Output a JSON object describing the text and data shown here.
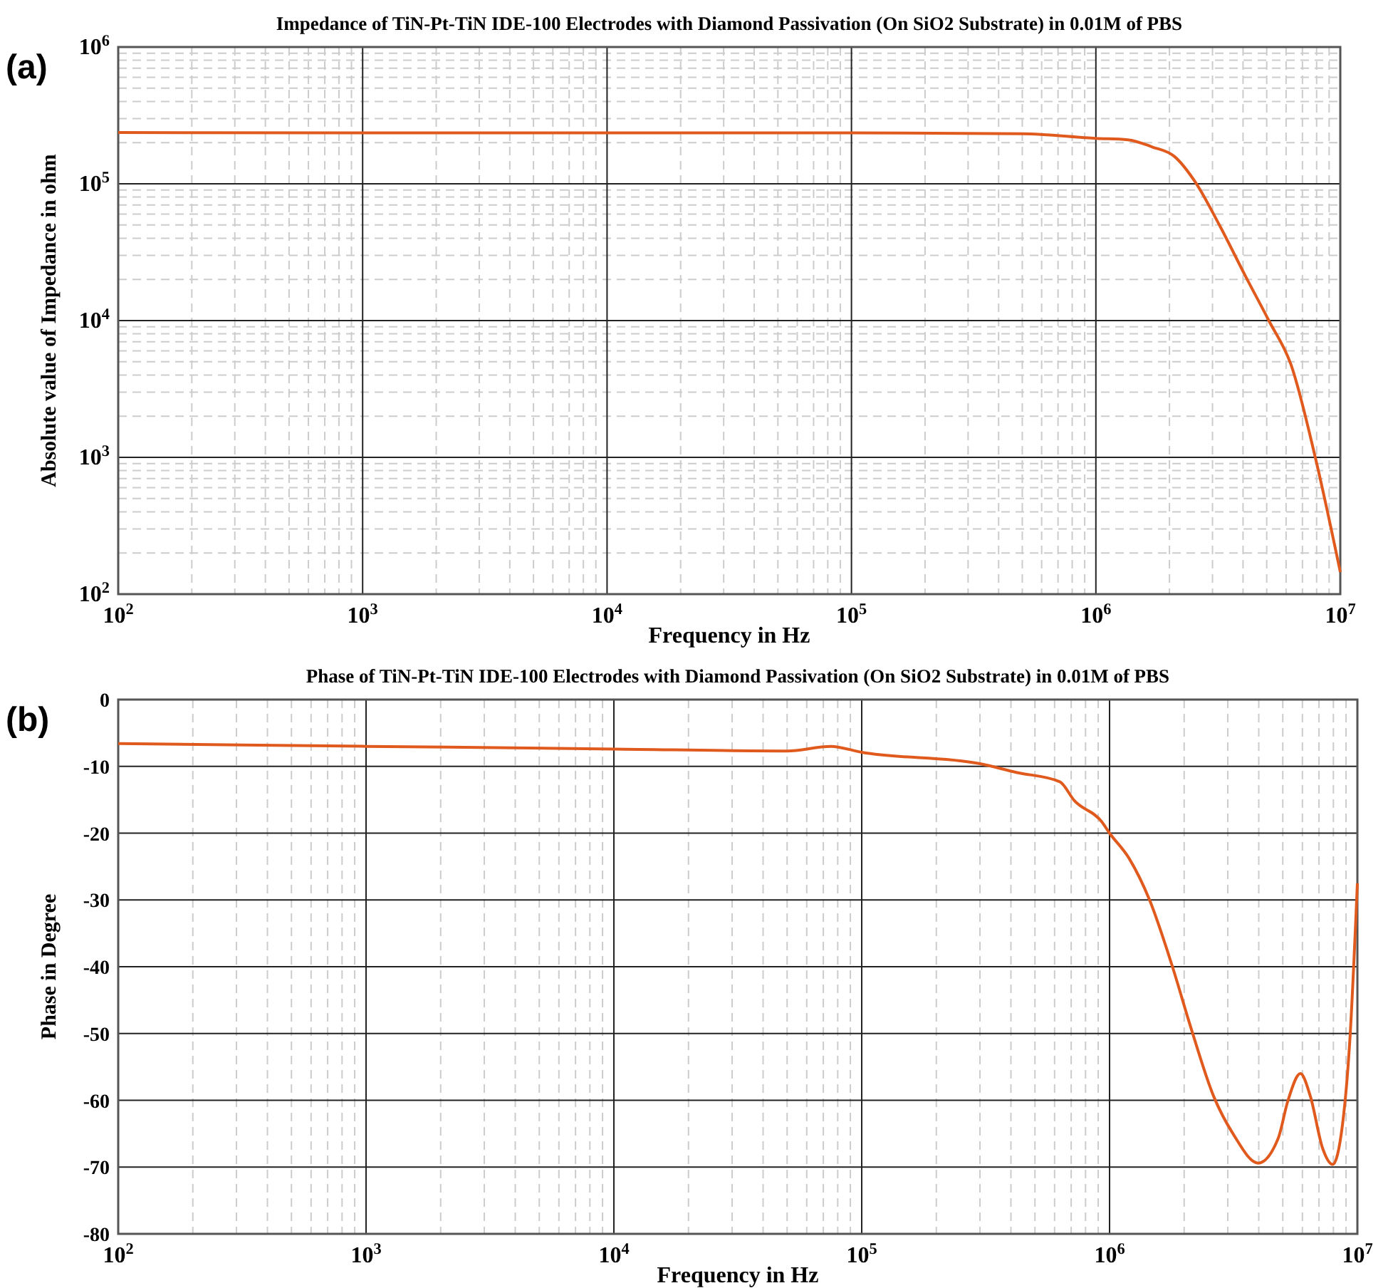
{
  "chart_data": [
    {
      "type": "line",
      "title": "Impedance of TiN-Pt-TiN IDE-100 Electrodes with Diamond Passivation (On SiO2 Substrate) in 0.01M of PBS",
      "xlabel": "Frequency in Hz",
      "ylabel": "Absolute value of Impedance in ohm",
      "annotations": [
        "(a)"
      ],
      "log": "xy",
      "grid": true,
      "xlim": [
        100,
        10000000
      ],
      "ylim": [
        100,
        1000000
      ],
      "xticks": [
        {
          "value": 100,
          "label": "10$^{2}$"
        },
        {
          "value": 1000,
          "label": "10$^{3}$"
        },
        {
          "value": 10000,
          "label": "10$^{4}$"
        },
        {
          "value": 100000,
          "label": "10$^{5}$"
        },
        {
          "value": 1000000,
          "label": "10$^{6}$"
        },
        {
          "value": 10000000,
          "label": "10$^{7}$"
        }
      ],
      "yticks": [
        {
          "value": 100,
          "label": "10$^{2}$"
        },
        {
          "value": 1000,
          "label": "10$^{3}$"
        },
        {
          "value": 10000,
          "label": "10$^{4}$"
        },
        {
          "value": 100000,
          "label": "10$^{5}$"
        },
        {
          "value": 1000000,
          "label": "10$^{6}$"
        }
      ],
      "series": [
        {
          "color": "#e05a1e",
          "x": [
            100,
            1000,
            10000,
            100000,
            500000,
            1000000,
            1350000,
            1700000,
            2100000,
            2560000,
            3200000,
            4100000,
            5100000,
            6300000,
            7900000,
            10000000
          ],
          "values": [
            237000,
            236000,
            236000,
            236000,
            232000,
            215000,
            210000,
            186000,
            158000,
            102000,
            50000,
            21000,
            10000,
            4700,
            1000,
            145
          ]
        }
      ]
    },
    {
      "type": "line",
      "title": "Phase of TiN-Pt-TiN IDE-100 Electrodes with Diamond Passivation (On SiO2 Substrate) in 0.01M of PBS",
      "xlabel": "Frequency in Hz",
      "ylabel": "Phase in Degree",
      "annotations": [
        "(b)"
      ],
      "log": "x",
      "grid": true,
      "xlim": [
        100,
        10000000
      ],
      "ylim": [
        -80,
        0
      ],
      "xticks": [
        {
          "value": 100,
          "label": "10$^{2}$"
        },
        {
          "value": 1000,
          "label": "10$^{3}$"
        },
        {
          "value": 10000,
          "label": "10$^{4}$"
        },
        {
          "value": 100000,
          "label": "10$^{5}$"
        },
        {
          "value": 1000000,
          "label": "10$^{6}$"
        },
        {
          "value": 10000000,
          "label": "10$^{7}$"
        }
      ],
      "yticks": [
        -80,
        -70,
        -60,
        -50,
        -40,
        -30,
        -20,
        -10,
        0
      ],
      "series": [
        {
          "color": "#e05a1e",
          "x": [
            100,
            1000,
            10000,
            50000,
            75000,
            100000,
            300000,
            420000,
            630000,
            720000,
            930000,
            1000000,
            1200000,
            1450000,
            1780000,
            2140000,
            2630000,
            3160000,
            3980000,
            4790000,
            5250000,
            5890000,
            6460000,
            7240000,
            7940000,
            8710000,
            9330000,
            10000000
          ],
          "values": [
            -6.6,
            -7.0,
            -7.4,
            -7.7,
            -7.0,
            -7.9,
            -9.6,
            -10.9,
            -12.3,
            -15.1,
            -18.3,
            -20,
            -23.8,
            -30,
            -39.6,
            -49.4,
            -59.4,
            -65.1,
            -69.4,
            -65.7,
            -60,
            -56,
            -59.4,
            -67.2,
            -69.6,
            -63.6,
            -50.8,
            -27.5
          ]
        }
      ]
    }
  ]
}
